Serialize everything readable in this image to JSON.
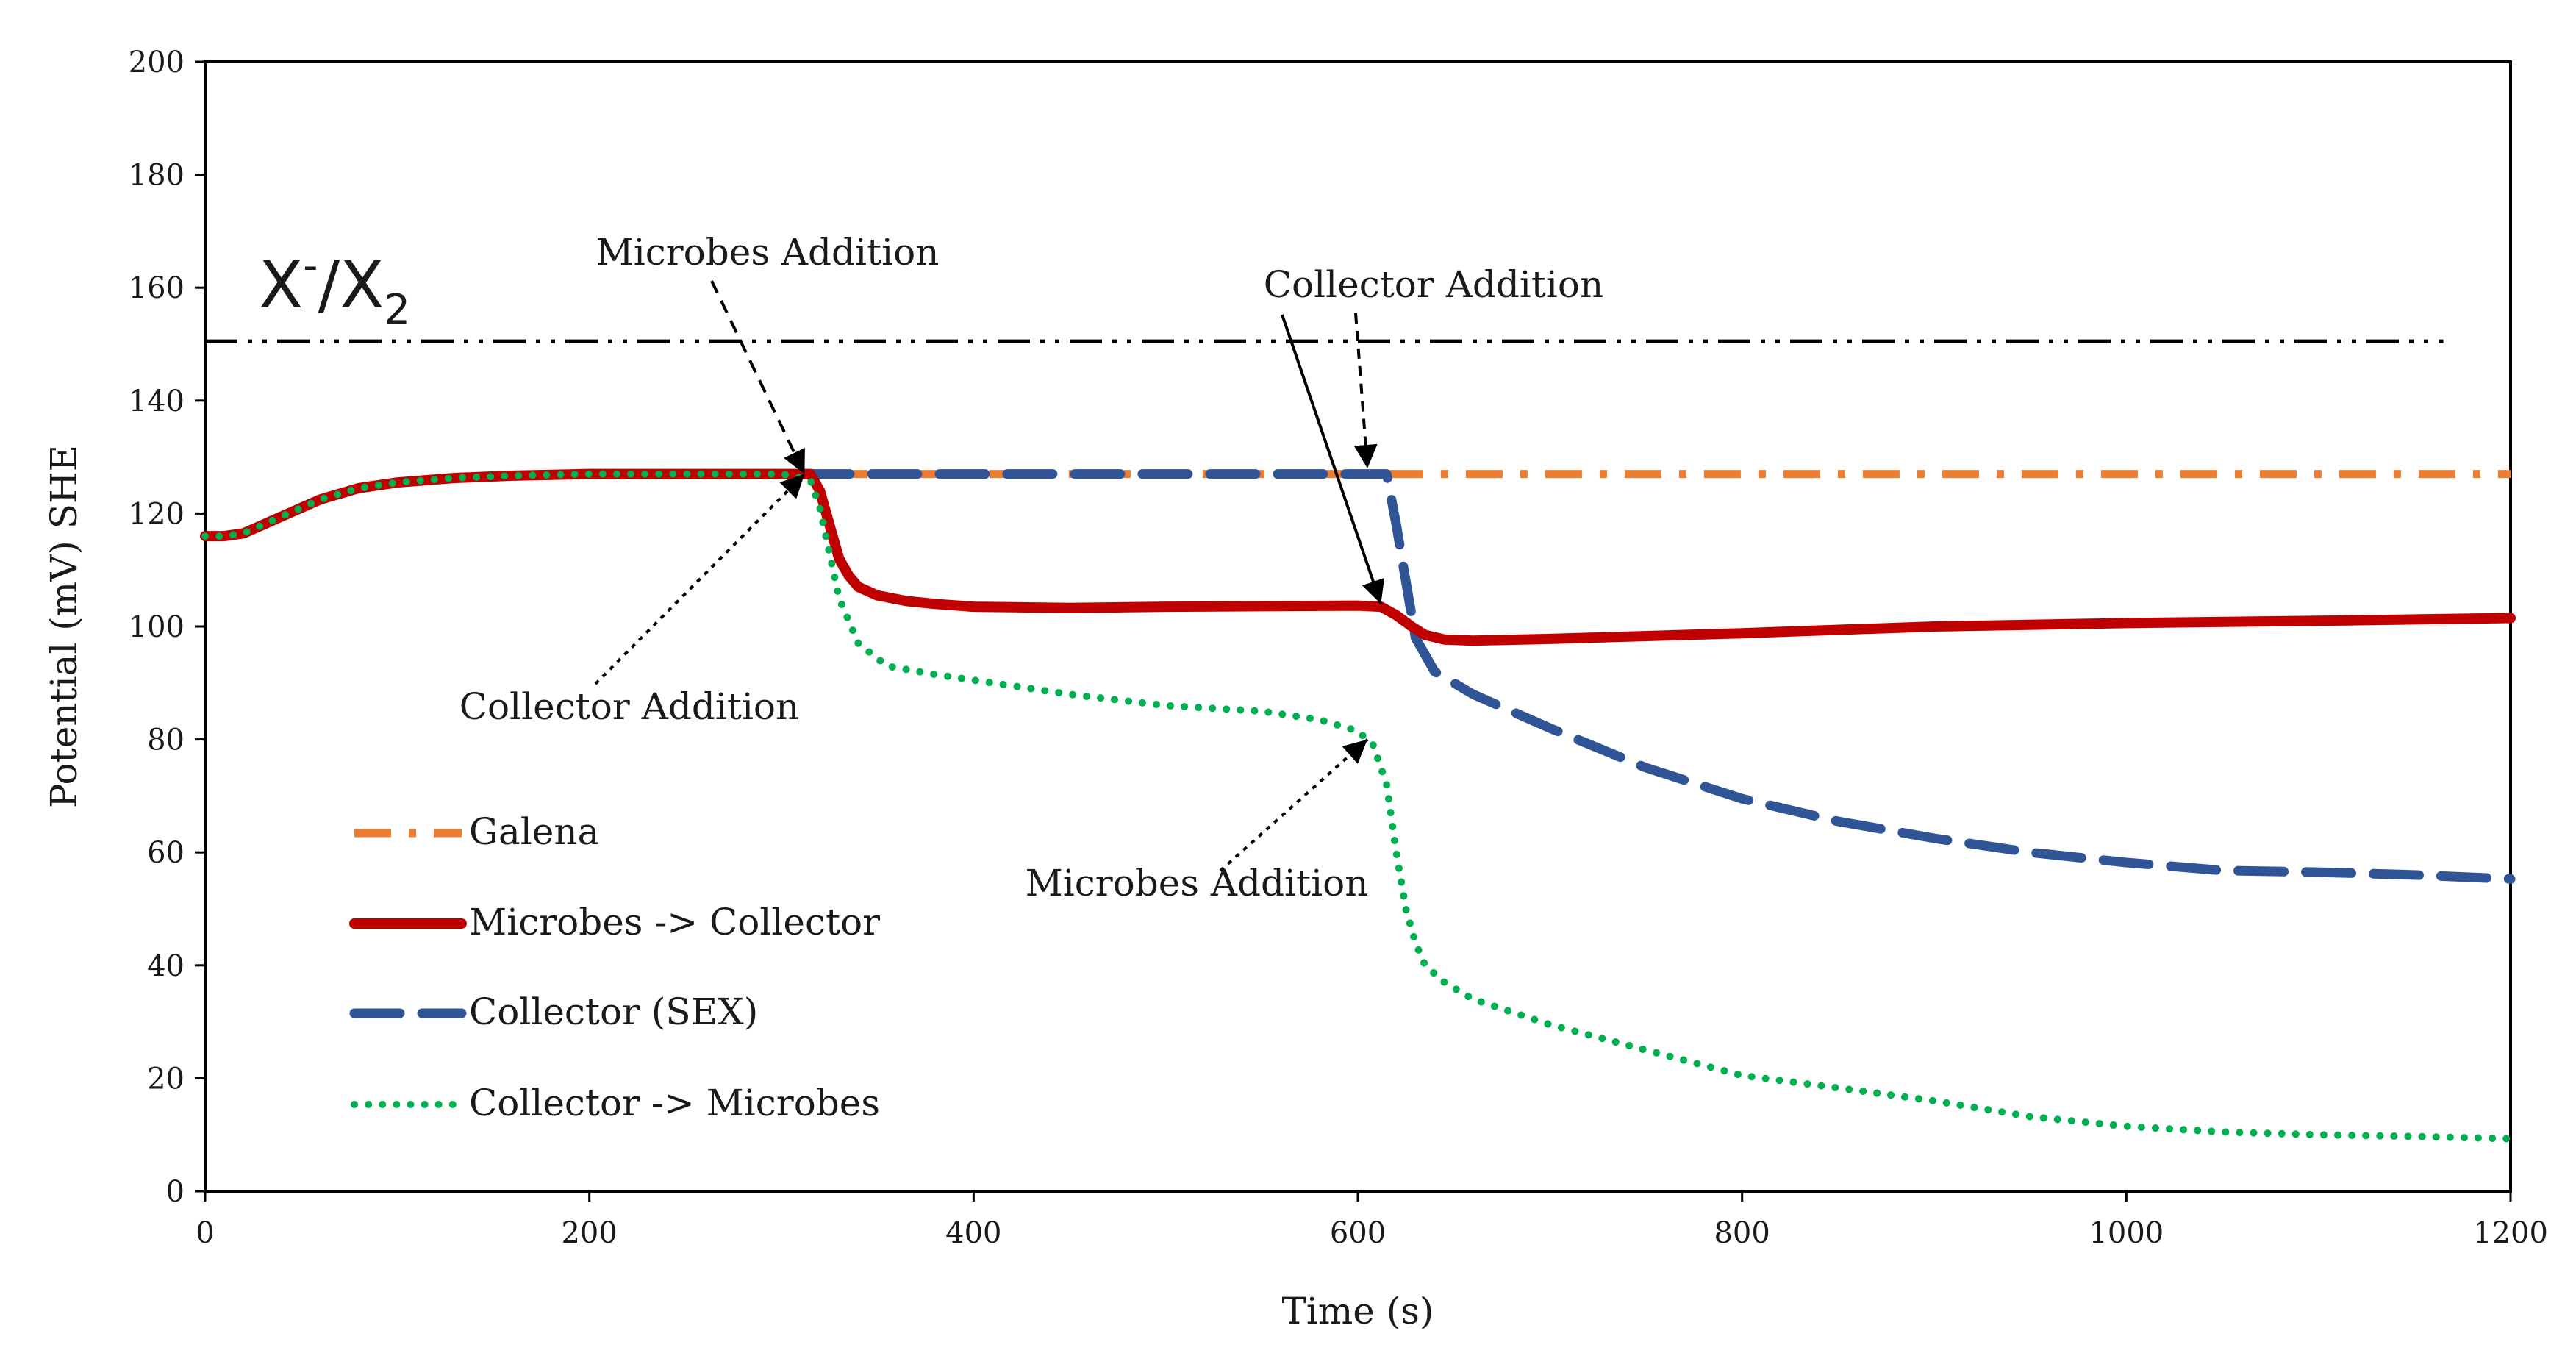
{
  "chart_data": {
    "type": "line",
    "xlabel": "Time (s)",
    "ylabel": "Potential (mV) SHE",
    "xlim": [
      0,
      1200
    ],
    "ylim": [
      0,
      200
    ],
    "xticks": [
      "0",
      "200",
      "400",
      "600",
      "800",
      "1000",
      "1200"
    ],
    "yticks": [
      "0",
      "20",
      "40",
      "60",
      "80",
      "100",
      "120",
      "140",
      "160",
      "180",
      "200"
    ],
    "grid": false,
    "legend_position": "bottom-left",
    "reference_line": {
      "y": 150.5,
      "x_range": [
        0,
        1165
      ],
      "label_main": "X",
      "label_sup": "-",
      "label_mid": "/X",
      "label_sub": "2"
    },
    "series": [
      {
        "name": "Galena",
        "color": "#ED7D31",
        "style": "dash-dot",
        "x": [
          0,
          10,
          20,
          30,
          40,
          60,
          80,
          100,
          130,
          160,
          200,
          250,
          300,
          315,
          400,
          500,
          600,
          700,
          800,
          900,
          1000,
          1100,
          1200
        ],
        "y": [
          116,
          116,
          116.5,
          118,
          119.5,
          122.5,
          124.5,
          125.5,
          126.3,
          126.7,
          127,
          127,
          127,
          127,
          127,
          127,
          127,
          127,
          127,
          127,
          127,
          127,
          127
        ]
      },
      {
        "name": "Microbes -> Collector",
        "color": "#C00000",
        "style": "solid",
        "x": [
          0,
          10,
          20,
          30,
          40,
          60,
          80,
          100,
          130,
          160,
          200,
          250,
          300,
          315,
          320,
          325,
          330,
          335,
          340,
          350,
          365,
          380,
          400,
          450,
          500,
          550,
          600,
          612,
          620,
          628,
          635,
          645,
          660,
          700,
          800,
          900,
          1000,
          1100,
          1200
        ],
        "y": [
          116,
          116,
          116.5,
          118,
          119.5,
          122.5,
          124.5,
          125.5,
          126.3,
          126.7,
          127,
          127,
          127,
          127,
          124,
          118,
          112,
          109,
          107,
          105.5,
          104.5,
          104,
          103.5,
          103.3,
          103.5,
          103.6,
          103.7,
          103.5,
          102,
          100,
          98.5,
          97.7,
          97.5,
          97.8,
          98.8,
          100,
          100.6,
          101,
          101.5
        ]
      },
      {
        "name": "Collector (SEX)",
        "color": "#2F5597",
        "style": "dash",
        "x": [
          0,
          10,
          20,
          30,
          40,
          60,
          80,
          100,
          130,
          160,
          200,
          250,
          300,
          315,
          400,
          500,
          600,
          615,
          620,
          625,
          630,
          640,
          660,
          700,
          750,
          800,
          850,
          900,
          950,
          1000,
          1050,
          1100,
          1150,
          1200
        ],
        "y": [
          116,
          116,
          116.5,
          118,
          119.5,
          122.5,
          124.5,
          125.5,
          126.3,
          126.7,
          127,
          127,
          127,
          127,
          127,
          127,
          127,
          127,
          118,
          108,
          98,
          92,
          88,
          82,
          75,
          69.5,
          65.5,
          62.5,
          60,
          58.2,
          56.8,
          56.5,
          56,
          55.3
        ]
      },
      {
        "name": "Collector -> Microbes",
        "color": "#00B050",
        "style": "dotted",
        "x": [
          0,
          10,
          20,
          30,
          40,
          60,
          80,
          100,
          130,
          160,
          200,
          250,
          300,
          315,
          320,
          325,
          330,
          340,
          355,
          380,
          400,
          450,
          500,
          550,
          580,
          600,
          608,
          615,
          620,
          625,
          630,
          635,
          645,
          660,
          700,
          750,
          800,
          850,
          900,
          950,
          1000,
          1050,
          1100,
          1150,
          1200
        ],
        "y": [
          116,
          116,
          116.5,
          118,
          119.5,
          122.5,
          124.5,
          125.5,
          126.3,
          126.7,
          127,
          127,
          127,
          126,
          121,
          113,
          105,
          97,
          93,
          91.5,
          90.5,
          88,
          86,
          85,
          83.5,
          81.5,
          79,
          72,
          60,
          50,
          44,
          40,
          37,
          34,
          29.5,
          25,
          20.5,
          18.3,
          16,
          13.2,
          11.5,
          10.5,
          10,
          9.7,
          9.3
        ]
      }
    ],
    "annotations": [
      {
        "text": "Microbes Addition",
        "style": "dashed",
        "target": [
          312,
          127
        ]
      },
      {
        "text": "Collector Addition",
        "style": "dotted",
        "target": [
          312,
          127
        ]
      },
      {
        "text": "Collector Addition",
        "style": "dashed",
        "target": [
          605,
          128
        ]
      },
      {
        "text": "Collector Addition",
        "style": "solid",
        "target": [
          612,
          104
        ]
      },
      {
        "text": "Microbes Addition",
        "style": "dotted",
        "target": [
          605,
          80
        ]
      }
    ]
  }
}
